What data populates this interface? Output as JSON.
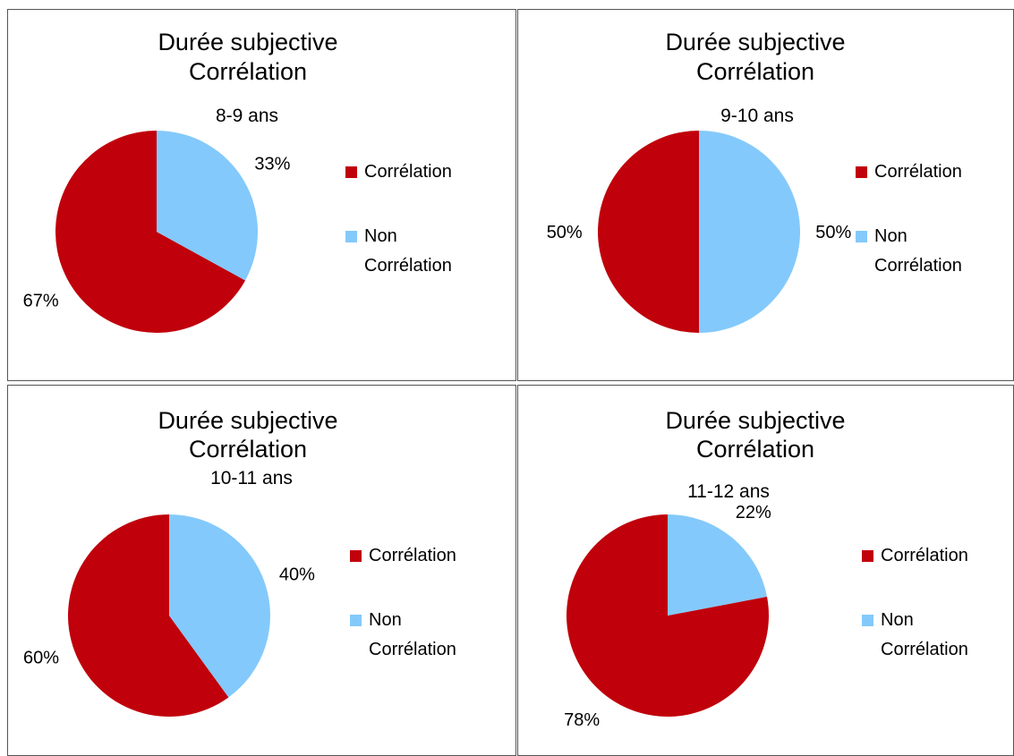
{
  "chart_data": [
    {
      "type": "pie",
      "title": [
        "Durée subjective",
        "Corrélation"
      ],
      "subtitle": "8-9 ans",
      "categories": [
        "Corrélation",
        "Non Corrélation"
      ],
      "values": [
        67,
        33
      ],
      "value_labels": [
        "67%",
        "33%"
      ],
      "colors": [
        "#c0000b",
        "#84c9fb"
      ]
    },
    {
      "type": "pie",
      "title": [
        "Durée subjective",
        "Corrélation"
      ],
      "subtitle": "9-10 ans",
      "categories": [
        "Corrélation",
        "Non Corrélation"
      ],
      "values": [
        50,
        50
      ],
      "value_labels": [
        "50%",
        "50%"
      ],
      "colors": [
        "#c0000b",
        "#84c9fb"
      ]
    },
    {
      "type": "pie",
      "title": [
        "Durée subjective",
        "Corrélation"
      ],
      "subtitle": "10-11 ans",
      "categories": [
        "Corrélation",
        "Non Corrélation"
      ],
      "values": [
        60,
        40
      ],
      "value_labels": [
        "60%",
        "40%"
      ],
      "colors": [
        "#c0000b",
        "#84c9fb"
      ]
    },
    {
      "type": "pie",
      "title": [
        "Durée subjective",
        "Corrélation"
      ],
      "subtitle": "11-12 ans",
      "categories": [
        "Corrélation",
        "Non Corrélation"
      ],
      "values": [
        78,
        22
      ],
      "value_labels": [
        "78%",
        "22%"
      ],
      "colors": [
        "#c0000b",
        "#84c9fb"
      ]
    }
  ]
}
